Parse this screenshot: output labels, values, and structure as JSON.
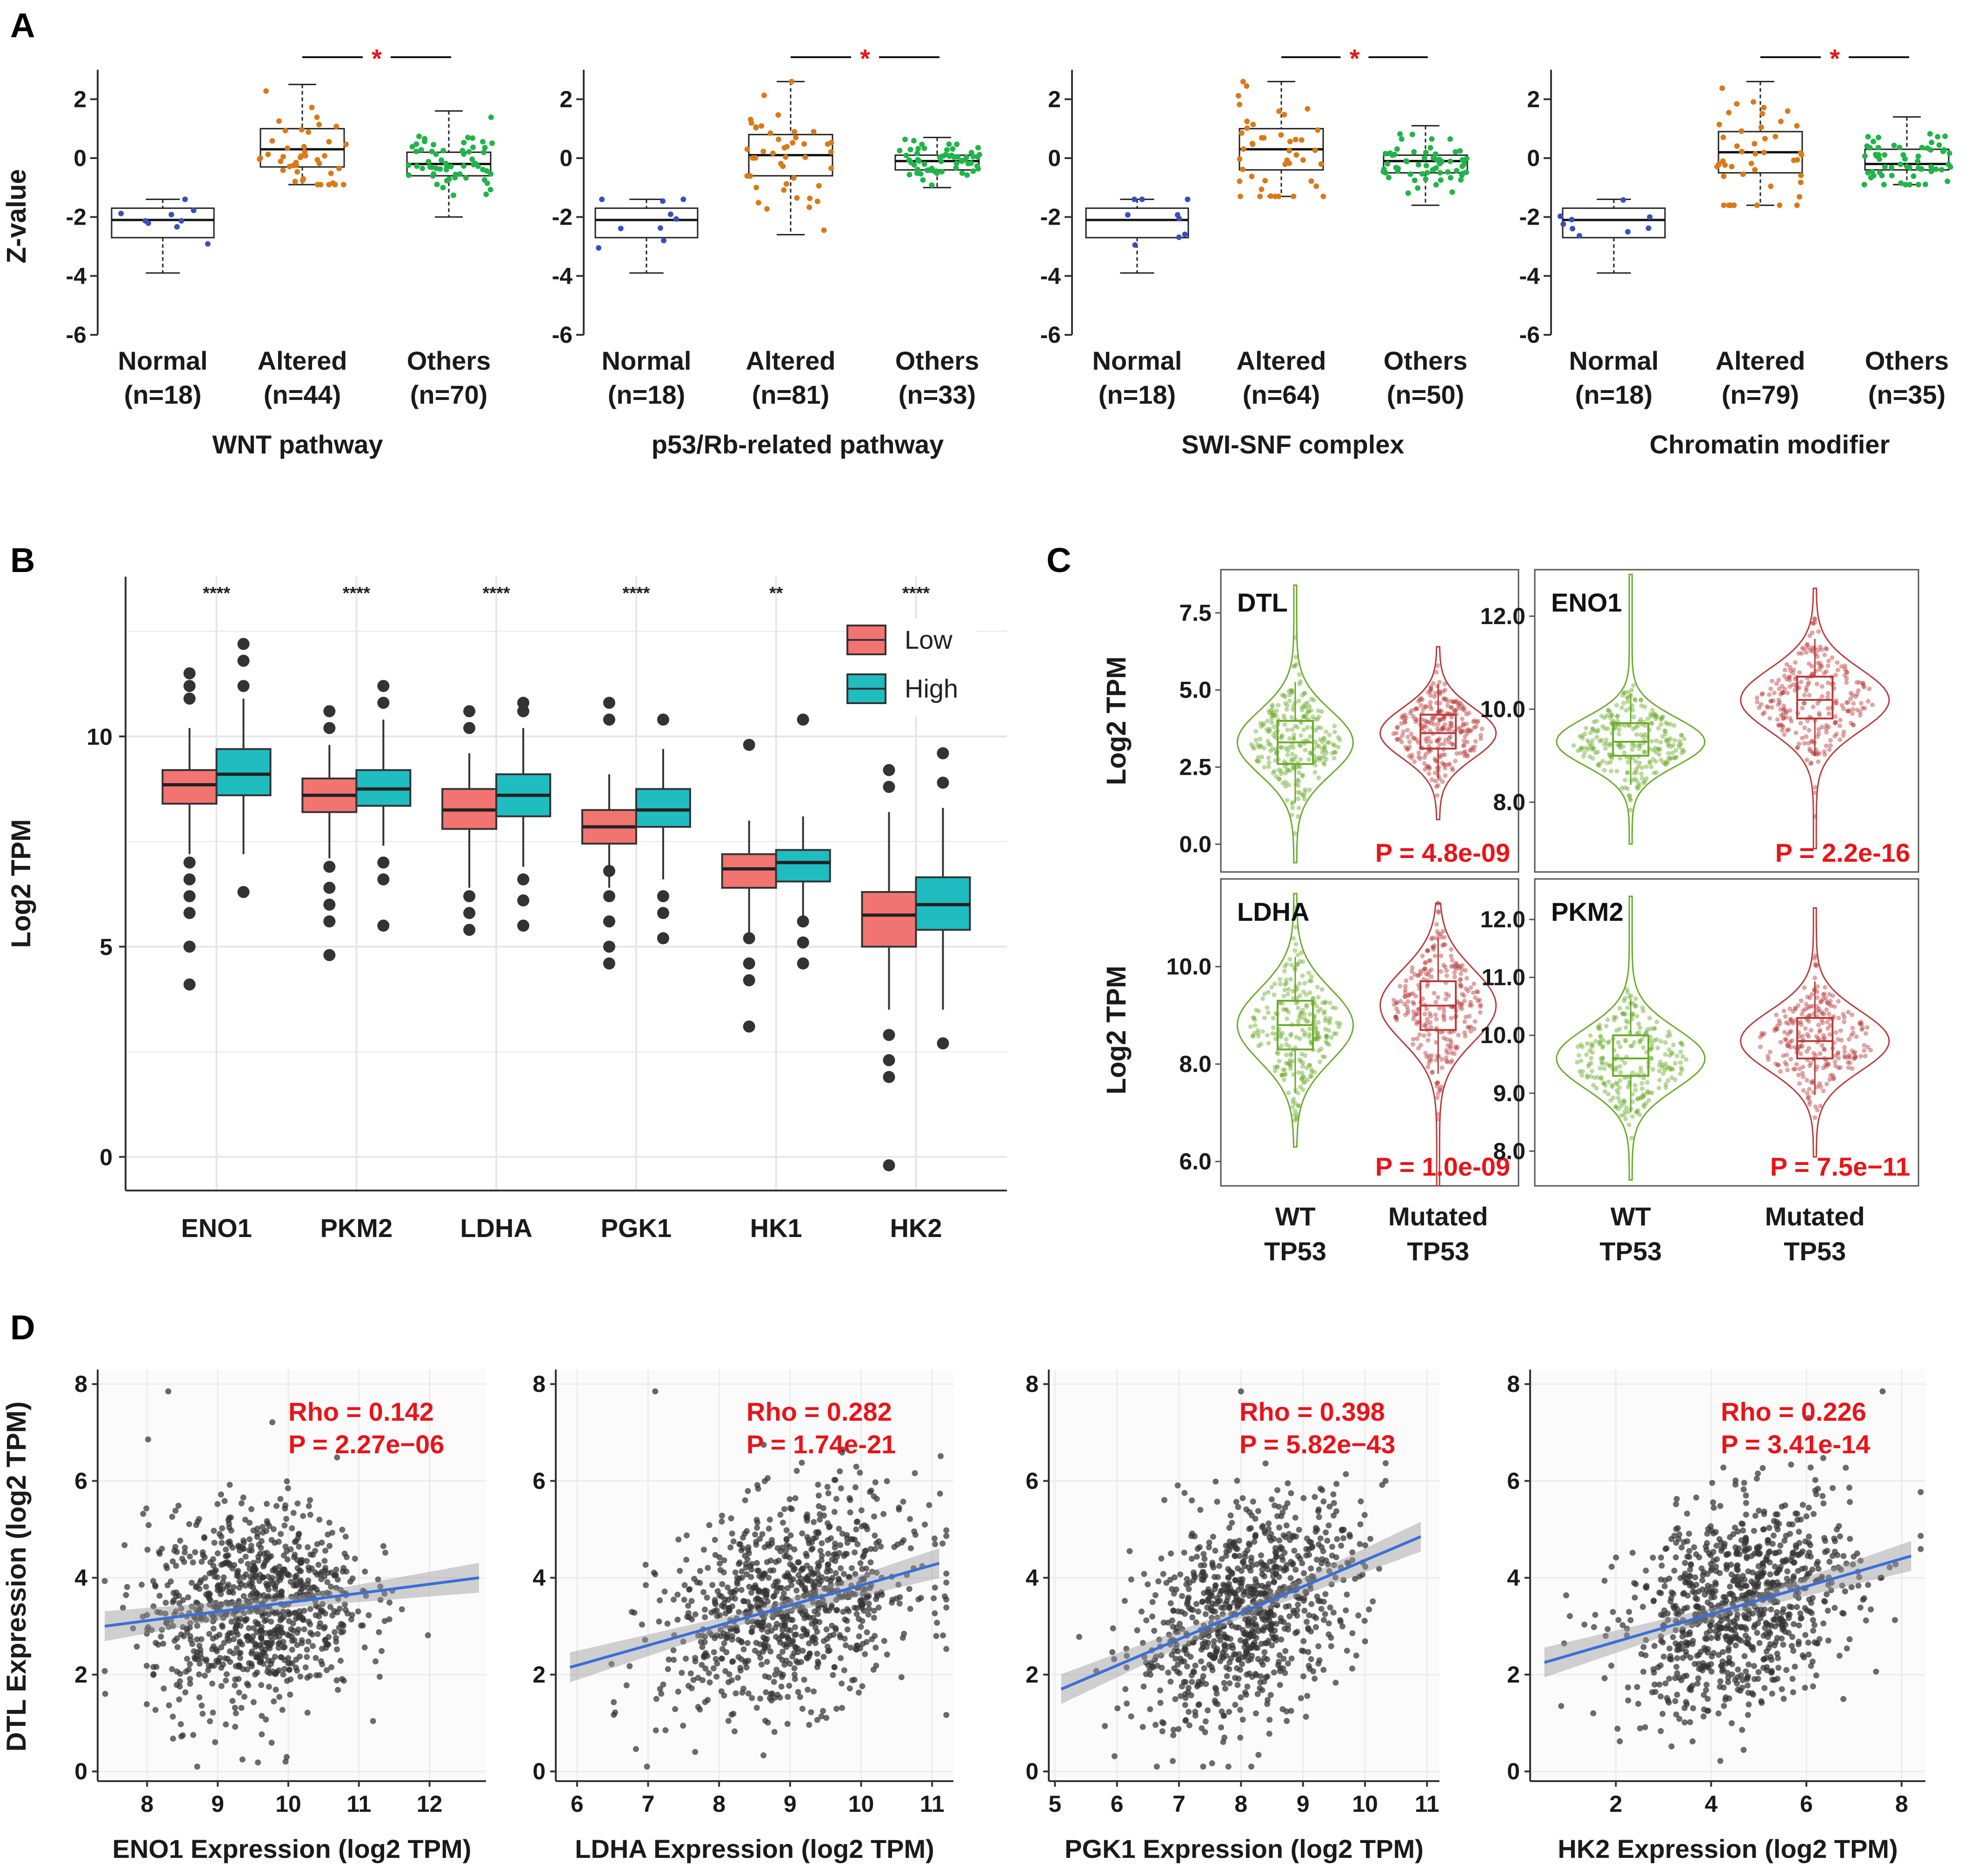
{
  "colors": {
    "normal": "#3b4fb8",
    "altered": "#d97a1a",
    "others": "#22b34a",
    "low": "#f27470",
    "high": "#1fbcc0",
    "wt": "#6aaa2a",
    "mutated": "#b83a3a",
    "fit_line": "#3a6fd8",
    "red_text": "#e8141a",
    "point": "#333333"
  },
  "panel_labels": {
    "a": "A",
    "b": "B",
    "c": "C",
    "d": "D"
  },
  "chart_data": [
    {
      "id": "A",
      "type": "box",
      "ylabel": "Z-value",
      "ylim": [
        -6,
        3
      ],
      "yticks": [
        "2",
        "0",
        "-2",
        "-4",
        "-6"
      ],
      "significance_mark": "*",
      "subplots": [
        {
          "title": "WNT pathway",
          "groups": [
            {
              "name": "Normal",
              "n": "(n=18)",
              "median": -2.1,
              "q1": -2.7,
              "q3": -1.7,
              "lo": -3.9,
              "hi": -1.4
            },
            {
              "name": "Altered",
              "n": "(n=44)",
              "median": 0.3,
              "q1": -0.3,
              "q3": 1.0,
              "lo": -0.9,
              "hi": 2.5
            },
            {
              "name": "Others",
              "n": "(n=70)",
              "median": -0.2,
              "q1": -0.6,
              "q3": 0.2,
              "lo": -2.0,
              "hi": 1.6
            }
          ]
        },
        {
          "title": "p53/Rb-related pathway",
          "groups": [
            {
              "name": "Normal",
              "n": "(n=18)",
              "median": -2.1,
              "q1": -2.7,
              "q3": -1.7,
              "lo": -3.9,
              "hi": -1.4
            },
            {
              "name": "Altered",
              "n": "(n=81)",
              "median": 0.1,
              "q1": -0.6,
              "q3": 0.8,
              "lo": -2.6,
              "hi": 2.6
            },
            {
              "name": "Others",
              "n": "(n=33)",
              "median": -0.1,
              "q1": -0.4,
              "q3": 0.1,
              "lo": -1.0,
              "hi": 0.7
            }
          ]
        },
        {
          "title": "SWI-SNF complex",
          "groups": [
            {
              "name": "Normal",
              "n": "(n=18)",
              "median": -2.1,
              "q1": -2.7,
              "q3": -1.7,
              "lo": -3.9,
              "hi": -1.4
            },
            {
              "name": "Altered",
              "n": "(n=64)",
              "median": 0.3,
              "q1": -0.4,
              "q3": 1.0,
              "lo": -1.3,
              "hi": 2.6
            },
            {
              "name": "Others",
              "n": "(n=50)",
              "median": -0.1,
              "q1": -0.5,
              "q3": 0.1,
              "lo": -1.6,
              "hi": 1.1
            }
          ]
        },
        {
          "title": "Chromatin modifier",
          "groups": [
            {
              "name": "Normal",
              "n": "(n=18)",
              "median": -2.1,
              "q1": -2.7,
              "q3": -1.7,
              "lo": -3.9,
              "hi": -1.4
            },
            {
              "name": "Altered",
              "n": "(n=79)",
              "median": 0.2,
              "q1": -0.5,
              "q3": 0.9,
              "lo": -1.6,
              "hi": 2.6
            },
            {
              "name": "Others",
              "n": "(n=35)",
              "median": -0.2,
              "q1": -0.4,
              "q3": 0.3,
              "lo": -0.9,
              "hi": 1.4
            }
          ]
        }
      ]
    },
    {
      "id": "B",
      "type": "box",
      "ylabel": "Log2 TPM",
      "ylim": [
        -0.8,
        13.8
      ],
      "yticks": [
        0,
        5,
        10
      ],
      "legend": [
        "Low",
        "High"
      ],
      "legend_position": "top-right",
      "categories": [
        "ENO1",
        "PKM2",
        "LDHA",
        "PGK1",
        "HK1",
        "HK2"
      ],
      "significance": [
        "****",
        "****",
        "****",
        "****",
        "**",
        "****"
      ],
      "series": [
        {
          "name": "Low",
          "boxes": [
            {
              "median": 8.85,
              "q1": 8.4,
              "q3": 9.2,
              "lo": 7.2,
              "hi": 10.2
            },
            {
              "median": 8.6,
              "q1": 8.2,
              "q3": 9.0,
              "lo": 7.1,
              "hi": 9.8
            },
            {
              "median": 8.25,
              "q1": 7.8,
              "q3": 8.75,
              "lo": 6.4,
              "hi": 9.6
            },
            {
              "median": 7.85,
              "q1": 7.45,
              "q3": 8.25,
              "lo": 6.4,
              "hi": 9.1
            },
            {
              "median": 6.85,
              "q1": 6.4,
              "q3": 7.2,
              "lo": 5.3,
              "hi": 8.0
            },
            {
              "median": 5.75,
              "q1": 5.0,
              "q3": 6.3,
              "lo": 3.5,
              "hi": 8.2
            }
          ],
          "outliers": [
            [
              11.5,
              11.2,
              10.9,
              7.0,
              6.6,
              6.2,
              5.8,
              5.0,
              4.1
            ],
            [
              10.6,
              10.2,
              6.9,
              6.4,
              6.0,
              5.6,
              4.8
            ],
            [
              10.6,
              10.2,
              6.2,
              5.8,
              5.4
            ],
            [
              10.8,
              10.4,
              6.8,
              6.2,
              5.6,
              5.0,
              4.6
            ],
            [
              9.8,
              5.2,
              4.6,
              4.2,
              3.1
            ],
            [
              9.2,
              8.8,
              2.9,
              2.3,
              1.9,
              -0.2
            ]
          ]
        },
        {
          "name": "High",
          "boxes": [
            {
              "median": 9.1,
              "q1": 8.6,
              "q3": 9.7,
              "lo": 7.2,
              "hi": 10.9
            },
            {
              "median": 8.75,
              "q1": 8.35,
              "q3": 9.2,
              "lo": 7.4,
              "hi": 10.4
            },
            {
              "median": 8.6,
              "q1": 8.1,
              "q3": 9.1,
              "lo": 6.9,
              "hi": 10.2
            },
            {
              "median": 8.25,
              "q1": 7.85,
              "q3": 8.75,
              "lo": 6.6,
              "hi": 9.7
            },
            {
              "median": 7.0,
              "q1": 6.55,
              "q3": 7.3,
              "lo": 5.7,
              "hi": 8.1
            },
            {
              "median": 6.0,
              "q1": 5.4,
              "q3": 6.65,
              "lo": 3.5,
              "hi": 8.3
            }
          ],
          "outliers": [
            [
              12.2,
              11.8,
              11.2,
              6.3
            ],
            [
              11.2,
              10.8,
              7.0,
              6.6,
              5.5
            ],
            [
              10.8,
              10.6,
              6.6,
              6.1,
              5.5
            ],
            [
              10.4,
              6.2,
              5.8,
              5.2
            ],
            [
              10.4,
              5.6,
              5.1,
              4.6
            ],
            [
              9.6,
              8.9,
              2.7
            ]
          ]
        }
      ]
    },
    {
      "id": "C",
      "type": "violin",
      "ylabel": "Log2 TPM",
      "group_labels": [
        [
          "WT",
          "TP53"
        ],
        [
          "Mutated",
          "TP53"
        ]
      ],
      "subplots": [
        {
          "gene": "DTL",
          "ylim": [
            -0.9,
            8.9
          ],
          "yticks": [
            "0.0",
            "2.5",
            "5.0",
            "7.5"
          ],
          "p": "P = 4.8e-09",
          "groups": [
            {
              "median": 3.3,
              "q1": 2.6,
              "q3": 4.0,
              "lo": -0.6,
              "hi": 8.4
            },
            {
              "median": 3.6,
              "q1": 3.1,
              "q3": 4.2,
              "lo": 0.8,
              "hi": 6.4
            }
          ]
        },
        {
          "gene": "ENO1",
          "ylim": [
            6.5,
            13.0
          ],
          "yticks": [
            "8.0",
            "10.0",
            "12.0"
          ],
          "p": "P = 2.2e-16",
          "groups": [
            {
              "median": 9.3,
              "q1": 9.0,
              "q3": 9.7,
              "lo": 7.1,
              "hi": 12.9
            },
            {
              "median": 10.2,
              "q1": 9.8,
              "q3": 10.7,
              "lo": 7.0,
              "hi": 12.6
            }
          ]
        },
        {
          "gene": "LDHA",
          "ylim": [
            5.5,
            11.8
          ],
          "yticks": [
            "6.0",
            "8.0",
            "10.0"
          ],
          "p": "P = 1.0e-09",
          "groups": [
            {
              "median": 8.8,
              "q1": 8.3,
              "q3": 9.3,
              "lo": 6.3,
              "hi": 11.5
            },
            {
              "median": 9.2,
              "q1": 8.7,
              "q3": 9.7,
              "lo": 5.5,
              "hi": 11.3
            }
          ]
        },
        {
          "gene": "PKM2",
          "ylim": [
            7.4,
            12.7
          ],
          "yticks": [
            "8.0",
            "9.0",
            "10.0",
            "11.0",
            "12.0"
          ],
          "p": "P = 7.5e−11",
          "groups": [
            {
              "median": 9.6,
              "q1": 9.3,
              "q3": 10.0,
              "lo": 7.5,
              "hi": 12.4
            },
            {
              "median": 9.9,
              "q1": 9.6,
              "q3": 10.3,
              "lo": 7.9,
              "hi": 12.2
            }
          ]
        }
      ]
    },
    {
      "id": "D",
      "type": "scatter",
      "ylabel": "DTL Expression (log2 TPM)",
      "ylim": [
        -0.2,
        8.3
      ],
      "yticks": [
        0,
        2,
        4,
        6,
        8
      ],
      "subplots": [
        {
          "xlabel": "ENO1 Expression (log2 TPM)",
          "xlim": [
            7.3,
            12.8
          ],
          "xticks": [
            8,
            9,
            10,
            11,
            12
          ],
          "rho": "Rho = 0.142",
          "p": "P = 2.27e−06",
          "fit": [
            [
              7.4,
              3.0
            ],
            [
              12.7,
              4.0
            ]
          ],
          "center": 9.5,
          "spread": 0.75,
          "outlier": [
            8.3,
            7.85
          ]
        },
        {
          "xlabel": "LDHA Expression (log2 TPM)",
          "xlim": [
            5.7,
            11.3
          ],
          "xticks": [
            6,
            7,
            8,
            9,
            10,
            11
          ],
          "rho": "Rho = 0.282",
          "p": "P = 1.74e-21",
          "fit": [
            [
              5.9,
              2.15
            ],
            [
              11.1,
              4.3
            ]
          ],
          "center": 9.0,
          "spread": 0.9,
          "outlier": [
            7.1,
            7.85
          ]
        },
        {
          "xlabel": "PGK1 Expression (log2 TPM)",
          "xlim": [
            4.9,
            11.2
          ],
          "xticks": [
            5,
            6,
            7,
            8,
            9,
            10,
            11
          ],
          "rho": "Rho = 0.398",
          "p": "P = 5.82e−43",
          "fit": [
            [
              5.1,
              1.7
            ],
            [
              10.9,
              4.85
            ]
          ],
          "center": 8.1,
          "spread": 0.9,
          "outlier": [
            8.0,
            7.85
          ]
        },
        {
          "xlabel": "HK2 Expression (log2 TPM)",
          "xlim": [
            0.2,
            8.5
          ],
          "xticks": [
            2,
            4,
            6,
            8
          ],
          "rho": "Rho = 0.226",
          "p": "P = 3.41e-14",
          "fit": [
            [
              0.5,
              2.25
            ],
            [
              8.2,
              4.45
            ]
          ],
          "center": 4.6,
          "spread": 1.2,
          "outlier": [
            7.6,
            7.85
          ]
        }
      ]
    }
  ]
}
